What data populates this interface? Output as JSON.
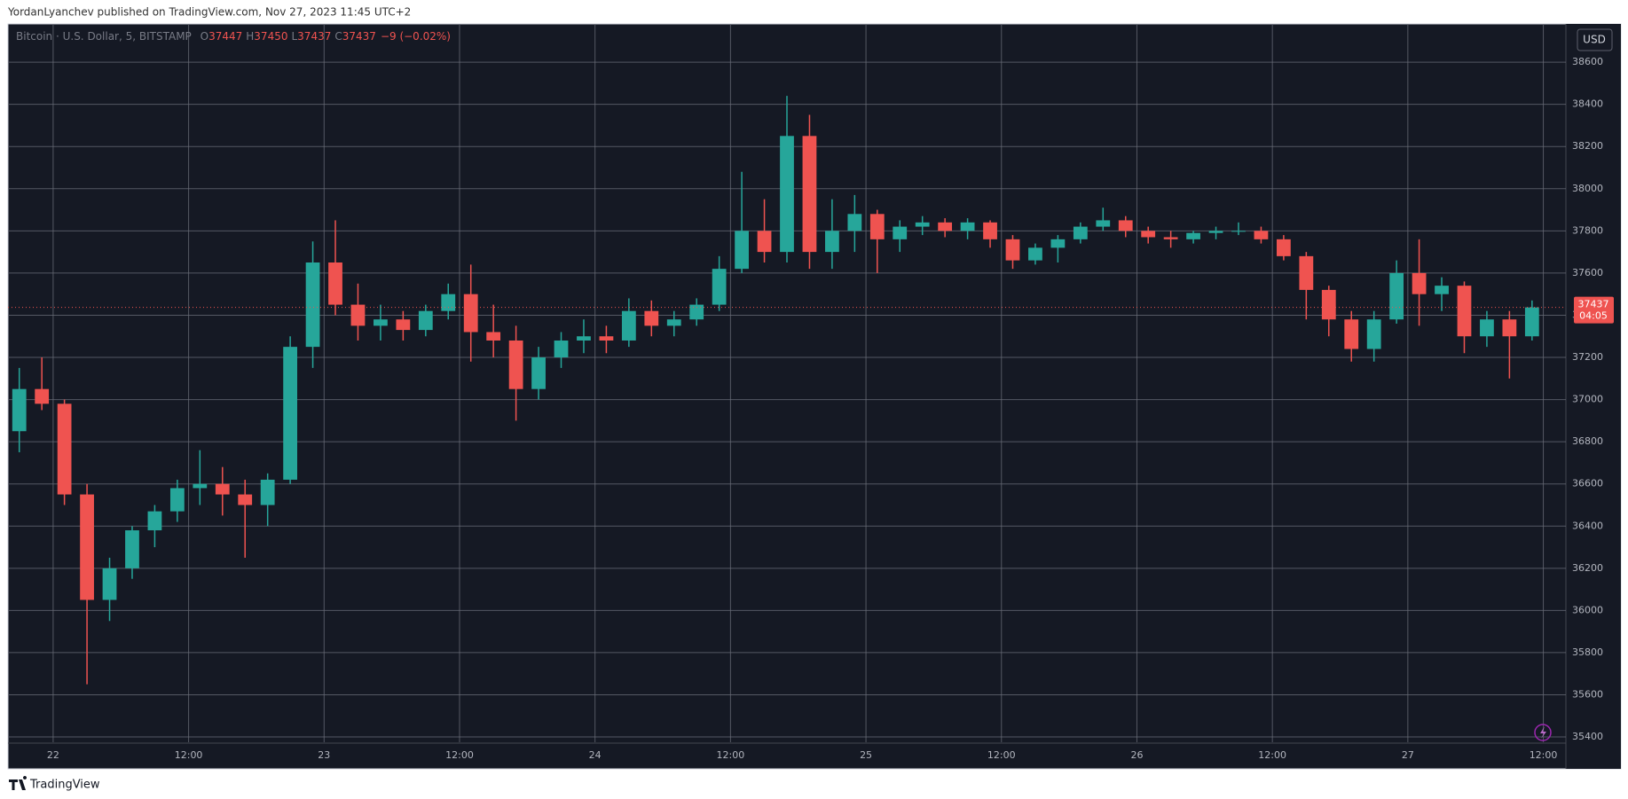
{
  "header": "YordanLyanchev published on TradingView.com, Nov 27, 2023 11:45 UTC+2",
  "footer": "TradingView",
  "chart_data": {
    "type": "candlestick",
    "title": "Bitcoin · U.S. Dollar, 5, BITSTAMP",
    "legend_labels": [
      "O",
      "H",
      "L",
      "C"
    ],
    "legend_values": [
      37447,
      37450,
      37437,
      37437
    ],
    "change": "−9 (−0.02%)",
    "currency": "USD",
    "price_line": 37437,
    "countdown": "04:05",
    "up_color": "#26a69a",
    "down_color": "#ef5350",
    "grid": true,
    "xlim": [
      -4,
      134
    ],
    "ylim": [
      35375,
      38777
    ],
    "xticks": [
      {
        "value": 0,
        "label": "22"
      },
      {
        "value": 12,
        "label": "12:00"
      },
      {
        "value": 24,
        "label": "23"
      },
      {
        "value": 36,
        "label": "12:00"
      },
      {
        "value": 48,
        "label": "24"
      },
      {
        "value": 60,
        "label": "12:00"
      },
      {
        "value": 72,
        "label": "25"
      },
      {
        "value": 84,
        "label": "12:00"
      },
      {
        "value": 96,
        "label": "26"
      },
      {
        "value": 108,
        "label": "12:00"
      },
      {
        "value": 120,
        "label": "27"
      },
      {
        "value": 132,
        "label": "12:00"
      }
    ],
    "yticks": [
      35400,
      35600,
      35800,
      36000,
      36200,
      36400,
      36600,
      36800,
      37000,
      37200,
      37400,
      37600,
      37800,
      38000,
      38200,
      38400,
      38600
    ],
    "x": [
      -3,
      -1,
      1,
      3,
      5,
      7,
      9,
      11,
      13,
      15,
      17,
      19,
      21,
      23,
      25,
      27,
      29,
      31,
      33,
      35,
      37,
      39,
      41,
      43,
      45,
      47,
      49,
      51,
      53,
      55,
      57,
      59,
      61,
      63,
      65,
      67,
      69,
      71,
      73,
      75,
      77,
      79,
      81,
      83,
      85,
      87,
      89,
      91,
      93,
      95,
      97,
      99,
      101,
      103,
      105,
      107,
      109,
      111,
      113,
      115,
      117,
      119,
      121,
      123,
      125,
      127,
      129,
      131
    ],
    "open": [
      36850,
      37050,
      36980,
      36550,
      36050,
      36200,
      36380,
      36470,
      36580,
      36600,
      36550,
      36500,
      36620,
      37250,
      37650,
      37450,
      37350,
      37380,
      37330,
      37420,
      37500,
      37320,
      37280,
      37050,
      37200,
      37280,
      37300,
      37280,
      37420,
      37350,
      37380,
      37450,
      37620,
      37800,
      37700,
      38250,
      37700,
      37800,
      37880,
      37760,
      37820,
      37840,
      37800,
      37840,
      37760,
      37660,
      37720,
      37760,
      37820,
      37850,
      37800,
      37770,
      37760,
      37790,
      37800,
      37800,
      37760,
      37680,
      37520,
      37380,
      37240,
      37380,
      37600,
      37500,
      37540,
      37300,
      37380,
      37300
    ],
    "high": [
      37150,
      37200,
      37000,
      36600,
      36250,
      36400,
      36500,
      36620,
      36760,
      36680,
      36620,
      36650,
      37300,
      37750,
      37850,
      37550,
      37450,
      37420,
      37450,
      37550,
      37640,
      37450,
      37350,
      37250,
      37320,
      37380,
      37350,
      37480,
      37470,
      37420,
      37480,
      37680,
      38080,
      37950,
      38440,
      38350,
      37950,
      37970,
      37900,
      37850,
      37870,
      37860,
      37860,
      37850,
      37780,
      37740,
      37780,
      37840,
      37910,
      37870,
      37820,
      37800,
      37800,
      37820,
      37840,
      37820,
      37780,
      37700,
      37540,
      37420,
      37420,
      37660,
      37760,
      37580,
      37560,
      37420,
      37420,
      37470
    ],
    "low": [
      36750,
      36950,
      36500,
      35650,
      35950,
      36150,
      36300,
      36420,
      36500,
      36450,
      36250,
      36400,
      36600,
      37150,
      37400,
      37280,
      37280,
      37280,
      37300,
      37380,
      37180,
      37200,
      36900,
      37000,
      37150,
      37220,
      37220,
      37250,
      37300,
      37300,
      37350,
      37420,
      37600,
      37650,
      37650,
      37620,
      37620,
      37700,
      37600,
      37700,
      37780,
      37770,
      37760,
      37720,
      37620,
      37640,
      37650,
      37740,
      37800,
      37770,
      37740,
      37720,
      37740,
      37760,
      37780,
      37740,
      37660,
      37380,
      37300,
      37180,
      37180,
      37360,
      37350,
      37420,
      37220,
      37250,
      37100,
      37280
    ],
    "close": [
      37050,
      36980,
      36550,
      36050,
      36200,
      36380,
      36470,
      36580,
      36600,
      36550,
      36500,
      36620,
      37250,
      37650,
      37450,
      37350,
      37380,
      37330,
      37420,
      37500,
      37320,
      37280,
      37050,
      37200,
      37280,
      37300,
      37280,
      37420,
      37350,
      37380,
      37450,
      37620,
      37800,
      37700,
      38250,
      37700,
      37800,
      37880,
      37760,
      37820,
      37840,
      37800,
      37840,
      37760,
      37660,
      37720,
      37760,
      37820,
      37850,
      37800,
      37770,
      37760,
      37790,
      37800,
      37800,
      37760,
      37680,
      37520,
      37380,
      37240,
      37380,
      37600,
      37500,
      37540,
      37300,
      37380,
      37300,
      37437
    ]
  }
}
